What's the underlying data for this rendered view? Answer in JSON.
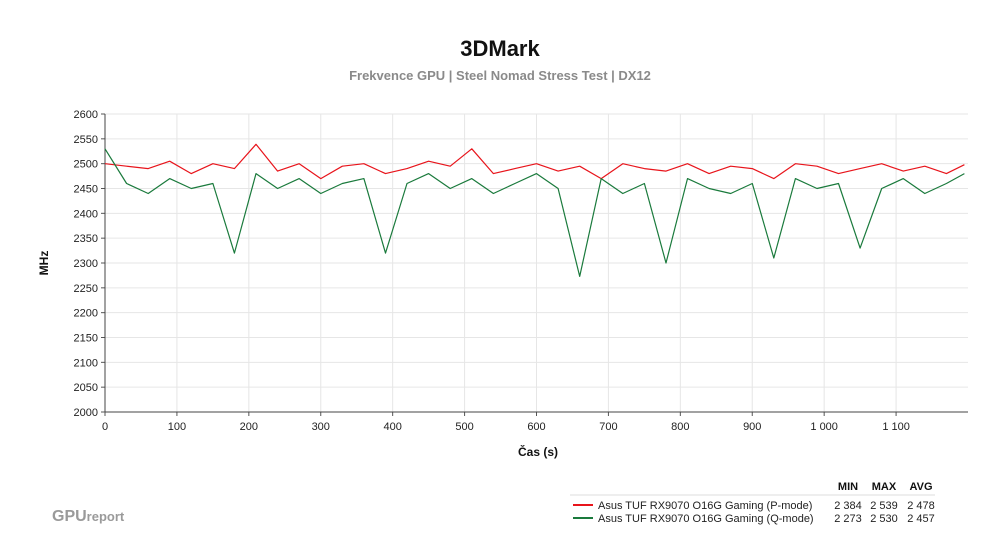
{
  "brand": {
    "primary": "GPU",
    "secondary": "report"
  },
  "chart_data": {
    "type": "line",
    "title": "3DMark",
    "subtitle": "Frekvence GPU | Steel Nomad Stress Test | DX12",
    "xlabel": "Čas (s)",
    "ylabel": "MHz",
    "xlim": [
      0,
      1200
    ],
    "ylim": [
      2000,
      2600
    ],
    "x_ticks": [
      0,
      100,
      200,
      300,
      400,
      500,
      600,
      700,
      800,
      900,
      1000,
      1100
    ],
    "x_tick_labels": [
      "0",
      "100",
      "200",
      "300",
      "400",
      "500",
      "600",
      "700",
      "800",
      "900",
      "1 000",
      "1 100"
    ],
    "y_ticks": [
      2000,
      2050,
      2100,
      2150,
      2200,
      2250,
      2300,
      2350,
      2400,
      2450,
      2500,
      2550,
      2600
    ],
    "y_tick_labels": [
      "2000",
      "2050",
      "2100",
      "2150",
      "2200",
      "2250",
      "2300",
      "2350",
      "2400",
      "2450",
      "2500",
      "2550",
      "2600"
    ],
    "grid": true,
    "legend_position": "bottom-right",
    "legend_columns": [
      "MIN",
      "MAX",
      "AVG"
    ],
    "series": [
      {
        "name": "Asus TUF RX9070 O16G Gaming (P-mode)",
        "color": "#e8141b",
        "stats": {
          "min": "2 384",
          "max": "2 539",
          "avg": "2 478"
        },
        "x": [
          0,
          30,
          60,
          90,
          120,
          150,
          180,
          210,
          240,
          270,
          300,
          330,
          360,
          390,
          420,
          450,
          480,
          510,
          540,
          570,
          600,
          630,
          660,
          690,
          720,
          750,
          780,
          810,
          840,
          870,
          900,
          930,
          960,
          990,
          1020,
          1050,
          1080,
          1110,
          1140,
          1170,
          1195
        ],
        "y": [
          2500,
          2495,
          2490,
          2505,
          2480,
          2500,
          2490,
          2539,
          2485,
          2500,
          2470,
          2495,
          2500,
          2480,
          2490,
          2505,
          2495,
          2530,
          2480,
          2490,
          2500,
          2485,
          2495,
          2470,
          2500,
          2490,
          2485,
          2500,
          2480,
          2495,
          2490,
          2470,
          2500,
          2495,
          2480,
          2490,
          2500,
          2485,
          2495,
          2480,
          2498
        ]
      },
      {
        "name": "Asus TUF RX9070 O16G Gaming (Q-mode)",
        "color": "#1a7a3c",
        "stats": {
          "min": "2 273",
          "max": "2 530",
          "avg": "2 457"
        },
        "x": [
          0,
          30,
          60,
          90,
          120,
          150,
          180,
          210,
          240,
          270,
          300,
          330,
          360,
          390,
          420,
          450,
          480,
          510,
          540,
          570,
          600,
          630,
          660,
          690,
          720,
          750,
          780,
          810,
          840,
          870,
          900,
          930,
          960,
          990,
          1020,
          1050,
          1080,
          1110,
          1140,
          1170,
          1195
        ],
        "y": [
          2530,
          2460,
          2440,
          2470,
          2450,
          2460,
          2320,
          2480,
          2450,
          2470,
          2440,
          2460,
          2470,
          2320,
          2460,
          2480,
          2450,
          2470,
          2440,
          2460,
          2480,
          2450,
          2273,
          2470,
          2440,
          2460,
          2300,
          2470,
          2450,
          2440,
          2460,
          2310,
          2470,
          2450,
          2460,
          2330,
          2450,
          2470,
          2440,
          2460,
          2480
        ]
      }
    ]
  }
}
